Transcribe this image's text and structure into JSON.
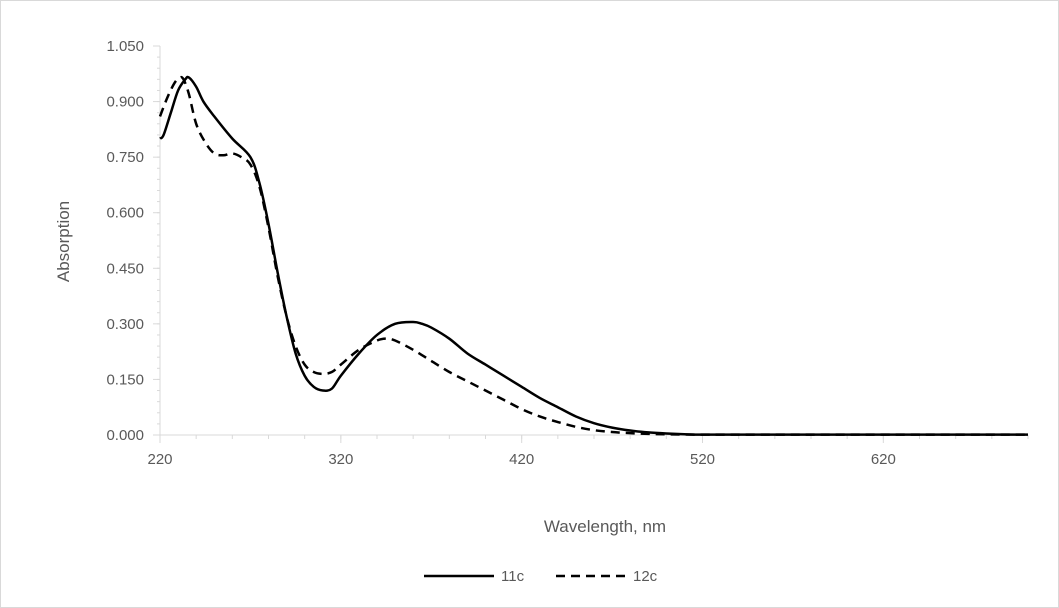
{
  "chart_data": {
    "type": "line",
    "title": "",
    "xlabel": "Wavelength, nm",
    "ylabel": "Absorption",
    "xlim": [
      220,
      700
    ],
    "ylim": [
      0,
      1.05
    ],
    "x_ticks": [
      "220",
      "320",
      "420",
      "520",
      "620"
    ],
    "x_tick_values": [
      220,
      320,
      420,
      520,
      620
    ],
    "y_ticks": [
      "0.000",
      "0.150",
      "0.300",
      "0.450",
      "0.600",
      "0.750",
      "0.900",
      "1.050"
    ],
    "y_tick_values": [
      0,
      0.15,
      0.3,
      0.45,
      0.6,
      0.75,
      0.9,
      1.05
    ],
    "grid": false,
    "legend_position": "bottom",
    "series": [
      {
        "name": "11c",
        "style": "solid",
        "color": "#000000",
        "x": [
          220,
          222,
          226,
          230,
          234,
          236,
          240,
          244,
          250,
          260,
          270,
          275,
          280,
          285,
          290,
          295,
          300,
          305,
          310,
          315,
          320,
          330,
          340,
          350,
          360,
          365,
          370,
          380,
          390,
          400,
          410,
          420,
          430,
          440,
          450,
          460,
          470,
          480,
          490,
          500,
          510,
          520,
          540,
          560,
          600,
          650,
          700
        ],
        "y": [
          0.8,
          0.81,
          0.87,
          0.93,
          0.96,
          0.965,
          0.94,
          0.9,
          0.86,
          0.8,
          0.75,
          0.68,
          0.57,
          0.44,
          0.32,
          0.22,
          0.16,
          0.13,
          0.12,
          0.125,
          0.16,
          0.22,
          0.27,
          0.3,
          0.305,
          0.3,
          0.29,
          0.26,
          0.22,
          0.19,
          0.16,
          0.13,
          0.1,
          0.075,
          0.05,
          0.032,
          0.02,
          0.012,
          0.007,
          0.004,
          0.002,
          0.001,
          0.001,
          0.001,
          0.001,
          0.001,
          0.001
        ]
      },
      {
        "name": "12c",
        "style": "dashed",
        "color": "#000000",
        "x": [
          220,
          224,
          228,
          231,
          233,
          236,
          240,
          245,
          250,
          255,
          260,
          265,
          270,
          275,
          280,
          285,
          290,
          295,
          300,
          305,
          310,
          315,
          320,
          330,
          340,
          345,
          350,
          360,
          370,
          380,
          390,
          400,
          410,
          420,
          430,
          440,
          450,
          460,
          470,
          480,
          490,
          500,
          520,
          560,
          600,
          650,
          700
        ],
        "y": [
          0.86,
          0.91,
          0.95,
          0.965,
          0.96,
          0.92,
          0.84,
          0.79,
          0.76,
          0.755,
          0.76,
          0.75,
          0.73,
          0.67,
          0.56,
          0.43,
          0.32,
          0.24,
          0.19,
          0.17,
          0.165,
          0.17,
          0.19,
          0.23,
          0.255,
          0.26,
          0.255,
          0.23,
          0.2,
          0.17,
          0.145,
          0.12,
          0.095,
          0.07,
          0.05,
          0.035,
          0.022,
          0.013,
          0.008,
          0.005,
          0.003,
          0.002,
          0.001,
          0.001,
          0.001,
          0.001,
          0.001
        ]
      }
    ]
  }
}
